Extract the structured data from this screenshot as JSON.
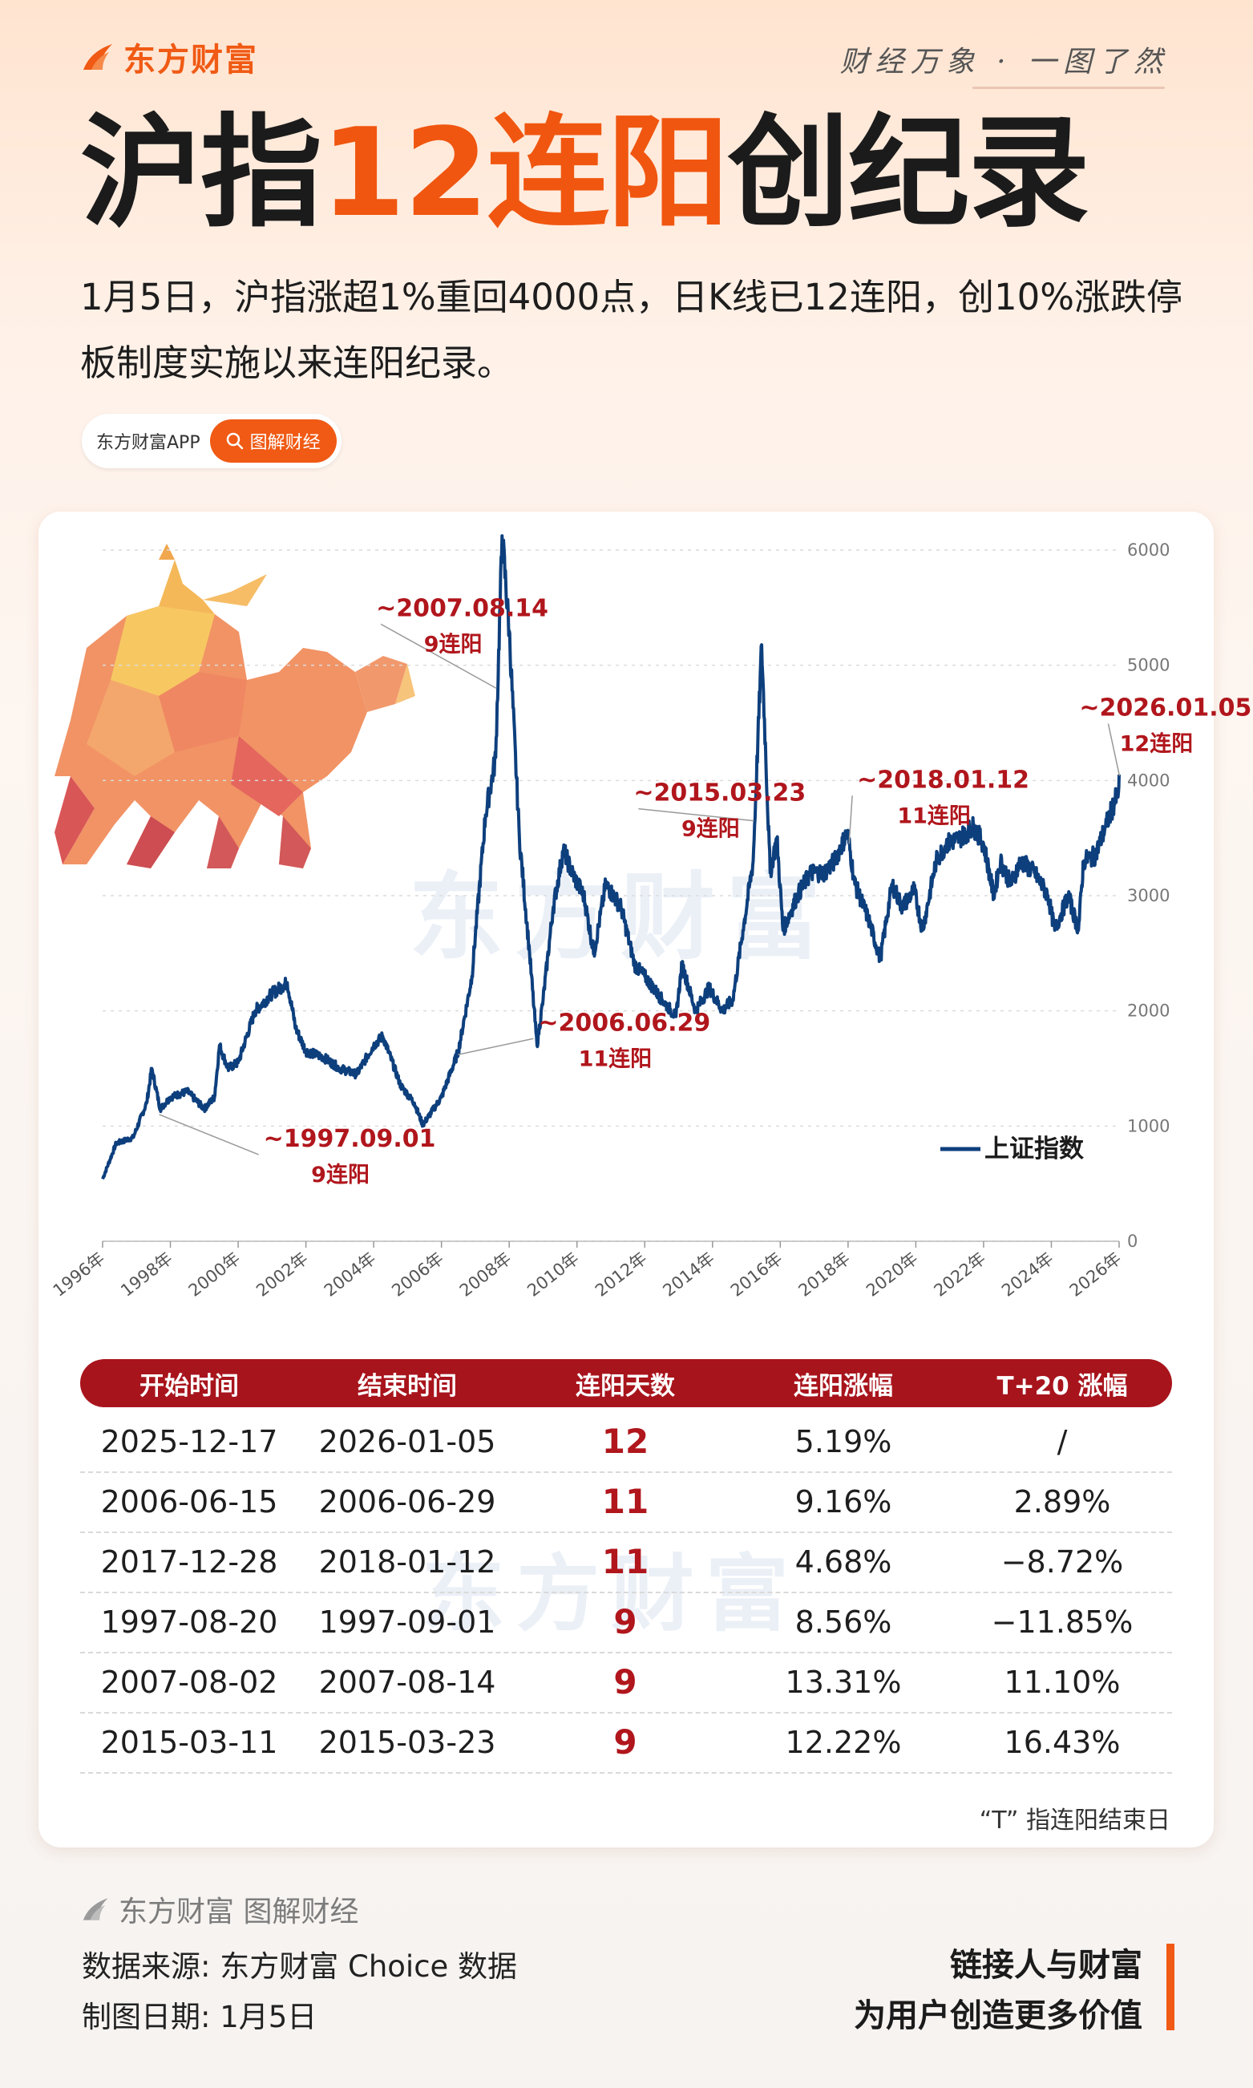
{
  "header": {
    "brand": "东方财富",
    "slogan": "财经万象 · 一图了然",
    "title_pre": "沪指",
    "title_highlight": "12连阳",
    "title_post": "创纪录",
    "subtitle": "1月5日，沪指涨超1%重回4000点，日K线已12连阳，创10%涨跌停板制度实施以来连阳纪录。",
    "app_name": "东方财富APP",
    "app_button": "图解财经"
  },
  "colors": {
    "accent": "#f05a14",
    "line": "#0d3f7d",
    "annotation": "#b0161c",
    "table_header": "#a8141c"
  },
  "watermark": "东方财富",
  "chart_data": {
    "type": "line",
    "title": "",
    "xlabel": "",
    "ylabel": "",
    "ylim": [
      0,
      6000
    ],
    "yticks": [
      0,
      1000,
      2000,
      3000,
      4000,
      5000,
      6000
    ],
    "xlim": [
      1996,
      2026
    ],
    "xtick_labels": [
      "1996年",
      "1998年",
      "2000年",
      "2002年",
      "2004年",
      "2006年",
      "2008年",
      "2010年",
      "2012年",
      "2014年",
      "2016年",
      "2018年",
      "2020年",
      "2022年",
      "2024年",
      "2026年"
    ],
    "grid": true,
    "legend_position": "right, inside plot",
    "series": [
      {
        "name": "上证指数",
        "x": [
          1996.0,
          1996.4,
          1996.9,
          1997.3,
          1997.45,
          1997.7,
          1998.0,
          1998.5,
          1999.0,
          1999.3,
          1999.45,
          1999.7,
          2000.0,
          2000.5,
          2001.0,
          2001.45,
          2001.7,
          2002.0,
          2002.5,
          2003.0,
          2003.5,
          2004.0,
          2004.27,
          2004.8,
          2005.2,
          2005.45,
          2006.0,
          2006.5,
          2006.9,
          2007.3,
          2007.6,
          2007.79,
          2008.0,
          2008.3,
          2008.6,
          2008.82,
          2009.0,
          2009.3,
          2009.6,
          2009.85,
          2010.2,
          2010.5,
          2010.85,
          2011.3,
          2011.7,
          2012.0,
          2012.5,
          2012.92,
          2013.1,
          2013.5,
          2013.9,
          2014.3,
          2014.6,
          2014.9,
          2015.2,
          2015.45,
          2015.7,
          2015.9,
          2016.08,
          2016.5,
          2016.9,
          2017.3,
          2017.6,
          2017.98,
          2018.2,
          2018.6,
          2018.95,
          2019.3,
          2019.6,
          2019.95,
          2020.2,
          2020.6,
          2020.9,
          2021.3,
          2021.7,
          2022.0,
          2022.3,
          2022.5,
          2022.8,
          2023.1,
          2023.5,
          2023.9,
          2024.1,
          2024.5,
          2024.8,
          2024.95,
          2025.3,
          2025.6,
          2025.98,
          2026.0
        ],
        "values": [
          540,
          850,
          900,
          1200,
          1500,
          1150,
          1250,
          1300,
          1150,
          1250,
          1700,
          1500,
          1550,
          2000,
          2150,
          2245,
          1850,
          1650,
          1600,
          1500,
          1450,
          1700,
          1780,
          1350,
          1200,
          1010,
          1250,
          1650,
          2300,
          3700,
          4200,
          6124,
          5300,
          3500,
          2500,
          1700,
          2100,
          2900,
          3400,
          3200,
          3000,
          2500,
          3100,
          2900,
          2400,
          2300,
          2100,
          1950,
          2400,
          2000,
          2200,
          2000,
          2100,
          2700,
          3300,
          5178,
          3200,
          3500,
          2700,
          3000,
          3200,
          3200,
          3300,
          3550,
          3100,
          2800,
          2450,
          3100,
          2900,
          3050,
          2700,
          3300,
          3450,
          3500,
          3600,
          3450,
          3000,
          3300,
          3100,
          3300,
          3200,
          3000,
          2700,
          3000,
          2700,
          3300,
          3350,
          3600,
          3900,
          4050
        ]
      }
    ],
    "annotations": [
      {
        "label": "~1997.09.01",
        "sub": "9连阳",
        "x": 1997.67,
        "y": 1100
      },
      {
        "label": "~2006.06.29",
        "sub": "11连阳",
        "x": 2006.49,
        "y": 1620
      },
      {
        "label": "~2007.08.14",
        "sub": "9连阳",
        "x": 2007.62,
        "y": 4800
      },
      {
        "label": "~2015.03.23",
        "sub": "9连阳",
        "x": 2015.22,
        "y": 3650
      },
      {
        "label": "~2018.01.12",
        "sub": "11连阳",
        "x": 2018.03,
        "y": 3450
      },
      {
        "label": "~2026.01.05",
        "sub": "12连阳",
        "x": 2026.01,
        "y": 4040
      }
    ]
  },
  "table": {
    "columns": [
      "开始时间",
      "结束时间",
      "连阳天数",
      "连阳涨幅",
      "T+20 涨幅"
    ],
    "rows": [
      [
        "2025-12-17",
        "2026-01-05",
        "12",
        "5.19%",
        "/"
      ],
      [
        "2006-06-15",
        "2006-06-29",
        "11",
        "9.16%",
        "2.89%"
      ],
      [
        "2017-12-28",
        "2018-01-12",
        "11",
        "4.68%",
        "−8.72%"
      ],
      [
        "1997-08-20",
        "1997-09-01",
        "9",
        "8.56%",
        "−11.85%"
      ],
      [
        "2007-08-02",
        "2007-08-14",
        "9",
        "13.31%",
        "11.10%"
      ],
      [
        "2015-03-11",
        "2015-03-23",
        "9",
        "12.22%",
        "16.43%"
      ]
    ],
    "note": "“T” 指连阳结束日"
  },
  "footer": {
    "brand": "东方财富 图解财经",
    "source": "数据来源: 东方财富 Choice 数据",
    "date": "制图日期: 1月5日",
    "tagline1": "链接人与财富",
    "tagline2": "为用户创造更多价值"
  }
}
